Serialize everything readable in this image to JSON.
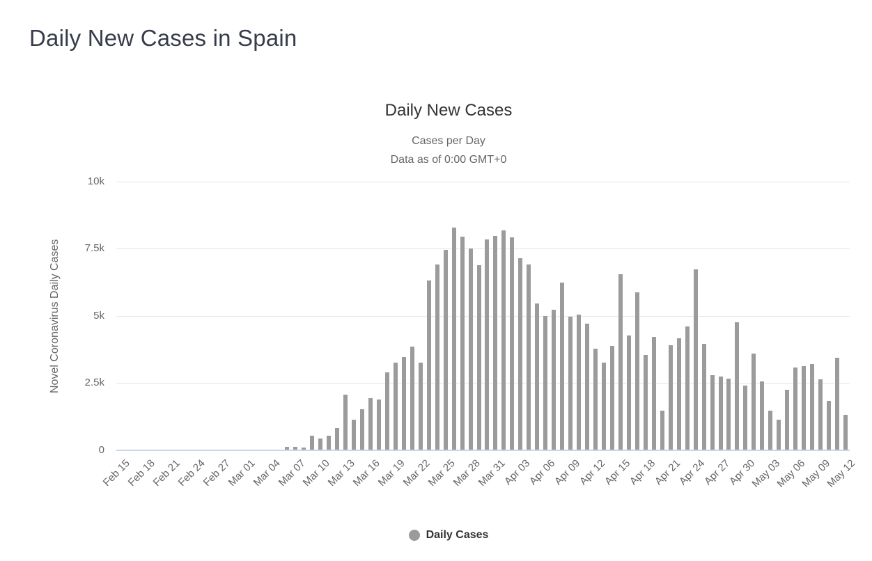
{
  "page": {
    "title": "Daily New Cases in Spain"
  },
  "chart": {
    "title": "Daily New Cases",
    "subtitle_line1": "Cases per Day",
    "subtitle_line2": "Data as of 0:00 GMT+0",
    "y_axis_title": "Novel Coronavirus Daily Cases",
    "legend_label": "Daily Cases",
    "colors": {
      "bar": "#9b9b9b",
      "gridline": "#e6e6e6",
      "axis_line": "#ccd6eb",
      "title_text": "#333333",
      "subtitle_text": "#666666",
      "tick_text": "#666666",
      "header_text": "#363c4a"
    }
  },
  "chart_data": {
    "type": "bar",
    "title": "Daily New Cases",
    "subtitle": [
      "Cases per Day",
      "Data as of 0:00 GMT+0"
    ],
    "xlabel": "",
    "ylabel": "Novel Coronavirus Daily Cases",
    "ylim": [
      0,
      10000
    ],
    "yticks": [
      "0",
      "2.5k",
      "5k",
      "7.5k",
      "10k"
    ],
    "x_tick_every": 3,
    "grid": true,
    "legend_position": "bottom",
    "legend_entries": [
      "Daily Cases"
    ],
    "bar_color": "#9b9b9b",
    "categories": [
      "Feb 15",
      "Feb 16",
      "Feb 17",
      "Feb 18",
      "Feb 19",
      "Feb 20",
      "Feb 21",
      "Feb 22",
      "Feb 23",
      "Feb 24",
      "Feb 25",
      "Feb 26",
      "Feb 27",
      "Feb 28",
      "Feb 29",
      "Mar 01",
      "Mar 02",
      "Mar 03",
      "Mar 04",
      "Mar 05",
      "Mar 06",
      "Mar 07",
      "Mar 08",
      "Mar 09",
      "Mar 10",
      "Mar 11",
      "Mar 12",
      "Mar 13",
      "Mar 14",
      "Mar 15",
      "Mar 16",
      "Mar 17",
      "Mar 18",
      "Mar 19",
      "Mar 20",
      "Mar 21",
      "Mar 22",
      "Mar 23",
      "Mar 24",
      "Mar 25",
      "Mar 26",
      "Mar 27",
      "Mar 28",
      "Mar 29",
      "Mar 30",
      "Mar 31",
      "Apr 01",
      "Apr 02",
      "Apr 03",
      "Apr 04",
      "Apr 05",
      "Apr 06",
      "Apr 07",
      "Apr 08",
      "Apr 09",
      "Apr 10",
      "Apr 11",
      "Apr 12",
      "Apr 13",
      "Apr 14",
      "Apr 15",
      "Apr 16",
      "Apr 17",
      "Apr 18",
      "Apr 19",
      "Apr 20",
      "Apr 21",
      "Apr 22",
      "Apr 23",
      "Apr 24",
      "Apr 25",
      "Apr 26",
      "Apr 27",
      "Apr 28",
      "Apr 29",
      "Apr 30",
      "May 01",
      "May 02",
      "May 03",
      "May 04",
      "May 05",
      "May 06",
      "May 07",
      "May 08",
      "May 09",
      "May 10",
      "May 11",
      "May 12"
    ],
    "values": [
      0,
      0,
      0,
      0,
      0,
      0,
      0,
      0,
      0,
      0,
      0,
      0,
      0,
      0,
      0,
      0,
      0,
      0,
      0,
      0,
      140,
      140,
      115,
      550,
      445,
      550,
      830,
      2085,
      1135,
      1540,
      1955,
      1885,
      2910,
      3270,
      3470,
      3865,
      3265,
      6330,
      6930,
      7465,
      8285,
      7945,
      7505,
      6885,
      7855,
      7985,
      8195,
      7940,
      7140,
      6925,
      5455,
      5005,
      5245,
      6250,
      4970,
      5040,
      4710,
      3775,
      3265,
      3895,
      6565,
      4270,
      5870,
      3550,
      4215,
      1490,
      3915,
      4180,
      4615,
      6735,
      3965,
      2805,
      2755,
      2660,
      4780,
      2410,
      3595,
      2570,
      1490,
      1140,
      2250,
      3075,
      3135,
      3220,
      2640,
      1835,
      3440,
      1315
    ]
  }
}
